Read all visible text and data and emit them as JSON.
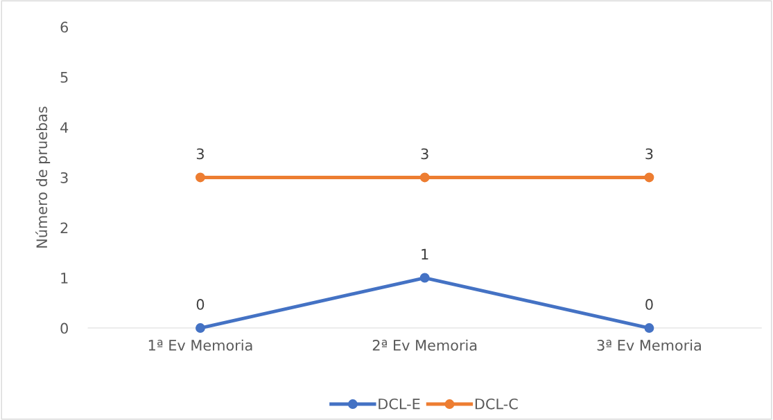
{
  "chart_data": {
    "type": "line",
    "ylabel": "Número de pruebas",
    "categories": [
      "1ª Ev Memoria",
      "2ª Ev Memoria",
      "3ª Ev Memoria"
    ],
    "series": [
      {
        "name": "DCL-E",
        "color": "#4472c4",
        "values": [
          0,
          1,
          0
        ]
      },
      {
        "name": "DCL-C",
        "color": "#ed7d31",
        "values": [
          3,
          3,
          3
        ]
      }
    ],
    "ylim": [
      0,
      6
    ],
    "yticks": [
      0,
      1,
      2,
      3,
      4,
      5,
      6
    ],
    "grid": false,
    "legend": "bottom",
    "marker": "circle",
    "line_style": "solid",
    "data_labels": true
  }
}
